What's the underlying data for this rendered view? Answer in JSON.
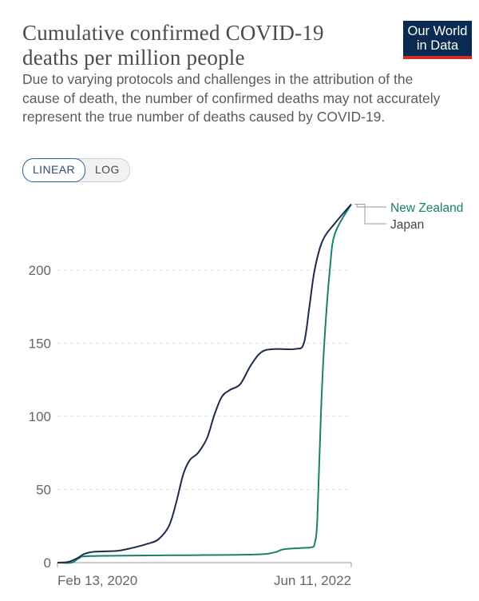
{
  "header": {
    "title_line1": "Cumulative confirmed COVID-19",
    "title_line2": "deaths per million people",
    "subtitle": "Due to varying protocols and challenges in the attribution of the cause of death, the number of confirmed deaths may not accurately represent the true number of deaths caused by COVID-19.",
    "logo_line1": "Our World",
    "logo_line2": "in Data"
  },
  "scale_toggle": {
    "options": [
      "LINEAR",
      "LOG"
    ],
    "selected": "LINEAR"
  },
  "colors": {
    "japan": "#1c2a4d",
    "new_zealand": "#17816b",
    "grid": "#d9d9d9",
    "logo_bg": "#0a2a52",
    "logo_accent": "#d42b2b"
  },
  "chart_data": {
    "type": "line",
    "title": "Cumulative confirmed COVID-19 deaths per million people",
    "x_tick_labels": [
      "Feb 13, 2020",
      "Jun 11, 2022"
    ],
    "xlim": [
      "2020-02-13",
      "2022-06-11"
    ],
    "ylim": [
      0,
      248
    ],
    "y_ticks": [
      0,
      50,
      100,
      150,
      200
    ],
    "grid": "horizontal dashed",
    "legend": "line-end labels at right",
    "series": [
      {
        "name": "New Zealand",
        "color": "#17816b",
        "points": [
          [
            "2020-02-13",
            0
          ],
          [
            "2020-03-25",
            0
          ],
          [
            "2020-04-15",
            3
          ],
          [
            "2020-05-20",
            4.5
          ],
          [
            "2020-12-31",
            5
          ],
          [
            "2021-09-01",
            5.5
          ],
          [
            "2021-11-01",
            7
          ],
          [
            "2021-11-25",
            9
          ],
          [
            "2022-01-15",
            10
          ],
          [
            "2022-02-15",
            10.5
          ],
          [
            "2022-02-25",
            13
          ],
          [
            "2022-03-05",
            30
          ],
          [
            "2022-03-15",
            100
          ],
          [
            "2022-03-25",
            150
          ],
          [
            "2022-04-10",
            200
          ],
          [
            "2022-04-25",
            225
          ],
          [
            "2022-06-11",
            245
          ]
        ]
      },
      {
        "name": "Japan",
        "color": "#1c2a4d",
        "points": [
          [
            "2020-02-13",
            0
          ],
          [
            "2020-03-15",
            0.5
          ],
          [
            "2020-04-10",
            3
          ],
          [
            "2020-05-01",
            6
          ],
          [
            "2020-06-01",
            7.5
          ],
          [
            "2020-08-01",
            8
          ],
          [
            "2020-09-15",
            10
          ],
          [
            "2020-11-01",
            13
          ],
          [
            "2020-12-01",
            16
          ],
          [
            "2020-12-31",
            25
          ],
          [
            "2021-01-20",
            40
          ],
          [
            "2021-02-10",
            60
          ],
          [
            "2021-03-01",
            70
          ],
          [
            "2021-03-25",
            75
          ],
          [
            "2021-04-20",
            85
          ],
          [
            "2021-05-10",
            100
          ],
          [
            "2021-06-01",
            113
          ],
          [
            "2021-06-25",
            118
          ],
          [
            "2021-07-25",
            122
          ],
          [
            "2021-08-25",
            135
          ],
          [
            "2021-09-25",
            144
          ],
          [
            "2021-11-01",
            146
          ],
          [
            "2021-12-31",
            146
          ],
          [
            "2022-01-25",
            150
          ],
          [
            "2022-02-10",
            175
          ],
          [
            "2022-02-25",
            200
          ],
          [
            "2022-03-20",
            220
          ],
          [
            "2022-04-25",
            232
          ],
          [
            "2022-06-11",
            245
          ]
        ]
      }
    ]
  }
}
